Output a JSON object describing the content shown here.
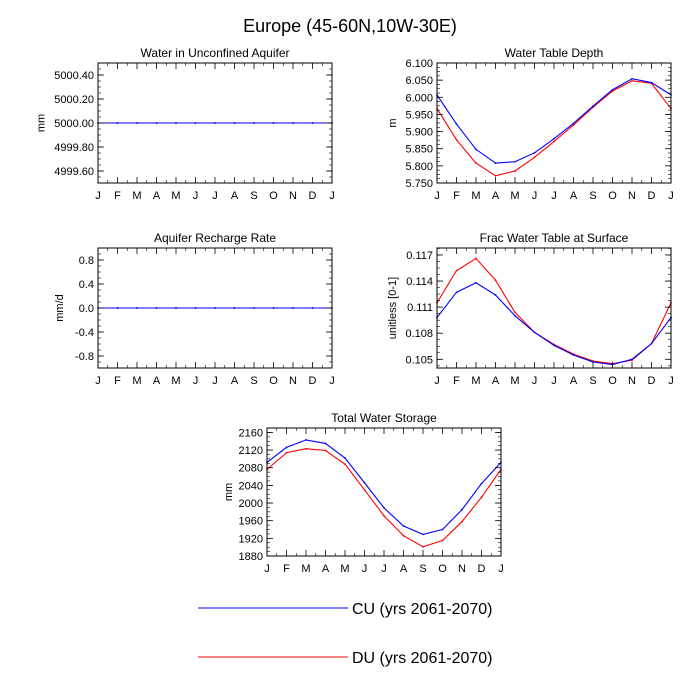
{
  "title": "Europe (45-60N,10W-30E)",
  "colors": {
    "CU": "#0000ff",
    "DU": "#ff0000",
    "axis": "#000000"
  },
  "legend": [
    {
      "key": "CU",
      "label": "CU (yrs 2061-2070)"
    },
    {
      "key": "DU",
      "label": "DU (yrs 2061-2070)"
    }
  ],
  "chart_data": [
    {
      "type": "line",
      "title": "Water in Unconfined Aquifer",
      "ylabel": "mm",
      "xlabel": "",
      "categories": [
        "J",
        "F",
        "M",
        "A",
        "M",
        "J",
        "J",
        "A",
        "S",
        "O",
        "N",
        "D",
        "J"
      ],
      "ylim": [
        4999.5,
        5000.5
      ],
      "yticks": [
        {
          "v": 4999.6,
          "label": "4999.60"
        },
        {
          "v": 4999.8,
          "label": "4999.80"
        },
        {
          "v": 5000.0,
          "label": "5000.00"
        },
        {
          "v": 5000.2,
          "label": "5000.20"
        },
        {
          "v": 5000.4,
          "label": "5000.40"
        }
      ],
      "series": [
        {
          "name": "CU",
          "values": [
            5000,
            5000,
            5000,
            5000,
            5000,
            5000,
            5000,
            5000,
            5000,
            5000,
            5000,
            5000,
            5000
          ]
        },
        {
          "name": "DU",
          "values": [
            5000,
            5000,
            5000,
            5000,
            5000,
            5000,
            5000,
            5000,
            5000,
            5000,
            5000,
            5000,
            5000
          ]
        }
      ]
    },
    {
      "type": "line",
      "title": "Water Table Depth",
      "ylabel": "m",
      "xlabel": "",
      "categories": [
        "J",
        "F",
        "M",
        "A",
        "M",
        "J",
        "J",
        "A",
        "S",
        "O",
        "N",
        "D",
        "J"
      ],
      "ylim": [
        5.75,
        6.1
      ],
      "yticks": [
        {
          "v": 5.75,
          "label": "5.750"
        },
        {
          "v": 5.8,
          "label": "5.800"
        },
        {
          "v": 5.85,
          "label": "5.850"
        },
        {
          "v": 5.9,
          "label": "5.900"
        },
        {
          "v": 5.95,
          "label": "5.950"
        },
        {
          "v": 6.0,
          "label": "6.000"
        },
        {
          "v": 6.05,
          "label": "6.050"
        },
        {
          "v": 6.1,
          "label": "6.100"
        }
      ],
      "series": [
        {
          "name": "CU",
          "values": [
            6.007,
            5.922,
            5.848,
            5.808,
            5.812,
            5.838,
            5.879,
            5.924,
            5.974,
            6.022,
            6.054,
            6.043,
            6.007
          ]
        },
        {
          "name": "DU",
          "values": [
            5.967,
            5.876,
            5.808,
            5.771,
            5.785,
            5.825,
            5.871,
            5.919,
            5.971,
            6.018,
            6.048,
            6.041,
            5.967
          ]
        }
      ]
    },
    {
      "type": "line",
      "title": "Aquifer Recharge Rate",
      "ylabel": "mm/d",
      "xlabel": "",
      "categories": [
        "J",
        "F",
        "M",
        "A",
        "M",
        "J",
        "J",
        "A",
        "S",
        "O",
        "N",
        "D",
        "J"
      ],
      "ylim": [
        -1.0,
        1.0
      ],
      "yticks": [
        {
          "v": -0.8,
          "label": "-0.8"
        },
        {
          "v": -0.4,
          "label": "-0.4"
        },
        {
          "v": 0.0,
          "label": "0.0"
        },
        {
          "v": 0.4,
          "label": "0.4"
        },
        {
          "v": 0.8,
          "label": "0.8"
        }
      ],
      "series": [
        {
          "name": "CU",
          "values": [
            0,
            0,
            0,
            0,
            0,
            0,
            0,
            0,
            0,
            0,
            0,
            0,
            0
          ]
        },
        {
          "name": "DU",
          "values": [
            0,
            0,
            0,
            0,
            0,
            0,
            0,
            0,
            0,
            0,
            0,
            0,
            0
          ]
        }
      ]
    },
    {
      "type": "line",
      "title": "Frac Water Table at Surface",
      "ylabel": "unitless [0-1]",
      "xlabel": "",
      "categories": [
        "J",
        "F",
        "M",
        "A",
        "M",
        "J",
        "J",
        "A",
        "S",
        "O",
        "N",
        "D",
        "J"
      ],
      "ylim": [
        0.104,
        0.1178
      ],
      "yticks": [
        {
          "v": 0.105,
          "label": "0.105"
        },
        {
          "v": 0.108,
          "label": "0.108"
        },
        {
          "v": 0.111,
          "label": "0.111"
        },
        {
          "v": 0.114,
          "label": "0.114"
        },
        {
          "v": 0.117,
          "label": "0.117"
        }
      ],
      "series": [
        {
          "name": "CU",
          "values": [
            0.1098,
            0.1127,
            0.1138,
            0.1124,
            0.11,
            0.1081,
            0.1066,
            0.1055,
            0.1047,
            0.1044,
            0.105,
            0.1068,
            0.1098
          ]
        },
        {
          "name": "DU",
          "values": [
            0.1115,
            0.1152,
            0.1166,
            0.1141,
            0.1104,
            0.1081,
            0.1067,
            0.1056,
            0.1048,
            0.1045,
            0.1049,
            0.1068,
            0.1115
          ]
        }
      ]
    },
    {
      "type": "line",
      "title": "Total Water Storage",
      "ylabel": "mm",
      "xlabel": "",
      "categories": [
        "J",
        "F",
        "M",
        "A",
        "M",
        "J",
        "J",
        "A",
        "S",
        "O",
        "N",
        "D",
        "J"
      ],
      "ylim": [
        1880,
        2170
      ],
      "yticks": [
        {
          "v": 1880,
          "label": "1880"
        },
        {
          "v": 1920,
          "label": "1920"
        },
        {
          "v": 1960,
          "label": "1960"
        },
        {
          "v": 2000,
          "label": "2000"
        },
        {
          "v": 2040,
          "label": "2040"
        },
        {
          "v": 2080,
          "label": "2080"
        },
        {
          "v": 2120,
          "label": "2120"
        },
        {
          "v": 2160,
          "label": "2160"
        }
      ],
      "series": [
        {
          "name": "CU",
          "values": [
            2092,
            2126,
            2143,
            2135,
            2102,
            2046,
            1989,
            1948,
            1929,
            1940,
            1985,
            2044,
            2092
          ]
        },
        {
          "name": "DU",
          "values": [
            2076,
            2114,
            2123,
            2119,
            2088,
            2030,
            1971,
            1926,
            1901,
            1915,
            1958,
            2013,
            2076
          ]
        }
      ]
    }
  ]
}
